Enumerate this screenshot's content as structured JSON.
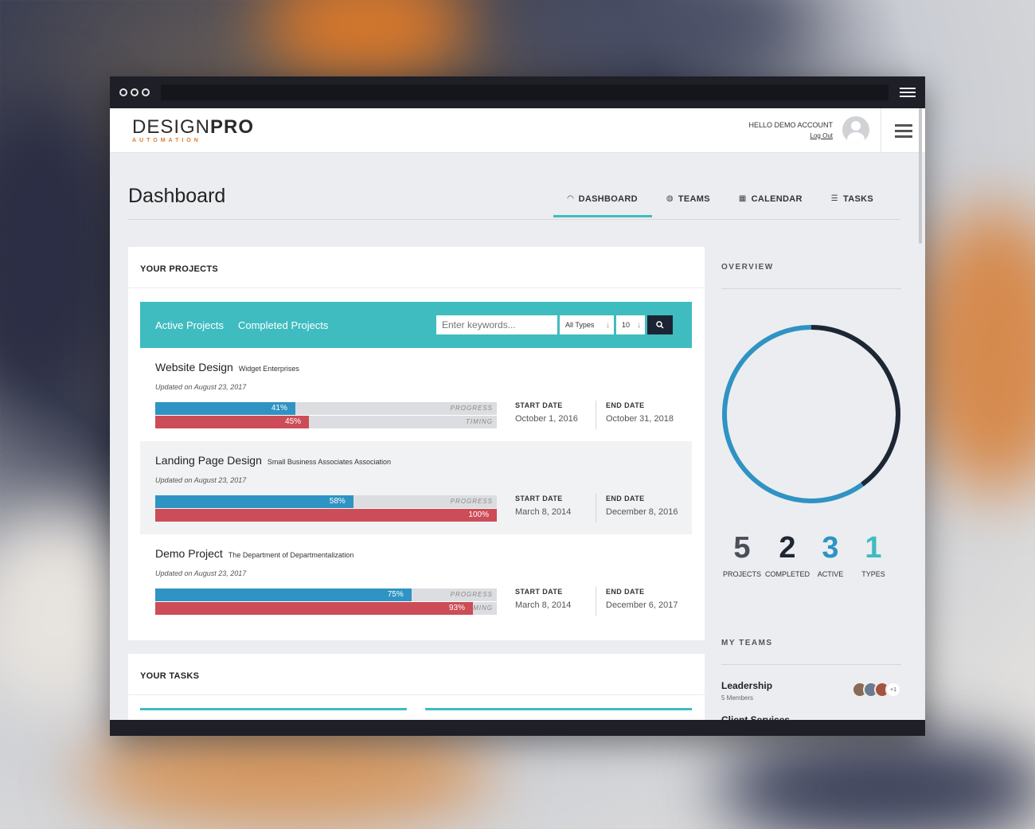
{
  "brand": {
    "name_light": "DESIGN",
    "name_bold": "PRO",
    "tagline": "AUTOMATION"
  },
  "user": {
    "greeting": "HELLO DEMO ACCOUNT",
    "logout": "Log Out"
  },
  "page": {
    "title": "Dashboard"
  },
  "tabs": [
    {
      "label": "DASHBOARD",
      "icon": "gauge-icon",
      "active": true
    },
    {
      "label": "TEAMS",
      "icon": "globe-icon",
      "active": false
    },
    {
      "label": "CALENDAR",
      "icon": "calendar-icon",
      "active": false
    },
    {
      "label": "TASKS",
      "icon": "list-icon",
      "active": false
    }
  ],
  "projects_card": {
    "title": "YOUR PROJECTS",
    "filter_tabs": [
      "Active Projects",
      "Completed Projects"
    ],
    "search_placeholder": "Enter keywords...",
    "type_select": "All Types",
    "count_select": "10",
    "progress_label": "PROGRESS",
    "timing_label": "TIMING",
    "start_label": "START DATE",
    "end_label": "END DATE",
    "projects": [
      {
        "name": "Website Design",
        "client": "Widget Enterprises",
        "updated": "Updated on August 23, 2017",
        "progress": "41%",
        "timing": "45%",
        "start": "October 1, 2016",
        "end": "October 31, 2018"
      },
      {
        "name": "Landing Page Design",
        "client": "Small Business Associates Association",
        "updated": "Updated on August 23, 2017",
        "progress": "58%",
        "timing": "100%",
        "start": "March 8, 2014",
        "end": "December 8, 2016"
      },
      {
        "name": "Demo Project",
        "client": "The Department of Departmentalization",
        "updated": "Updated on August 23, 2017",
        "progress": "75%",
        "timing": "93%",
        "start": "March 8, 2014",
        "end": "December 6, 2017"
      }
    ]
  },
  "tasks_card": {
    "title": "YOUR TASKS"
  },
  "overview": {
    "title": "OVERVIEW",
    "stats": [
      {
        "value": "5",
        "label": "PROJECTS",
        "color": "#4a4f59"
      },
      {
        "value": "2",
        "label": "COMPLETED",
        "color": "#1f2633"
      },
      {
        "value": "3",
        "label": "ACTIVE",
        "color": "#2f93c3"
      },
      {
        "value": "1",
        "label": "TYPES",
        "color": "#3fbcc0"
      }
    ],
    "donut": {
      "completed_fraction": 0.4,
      "active_fraction": 0.6
    }
  },
  "teams": {
    "title": "MY TEAMS",
    "items": [
      {
        "name": "Leadership",
        "members": "5 Members",
        "extra": "+1"
      },
      {
        "name": "Client Services"
      }
    ]
  },
  "colors": {
    "accent": "#3fbcc0",
    "progress": "#2f93c3",
    "timing": "#cc4d57",
    "dark": "#1f2633",
    "brand_orange": "#e07a27"
  }
}
